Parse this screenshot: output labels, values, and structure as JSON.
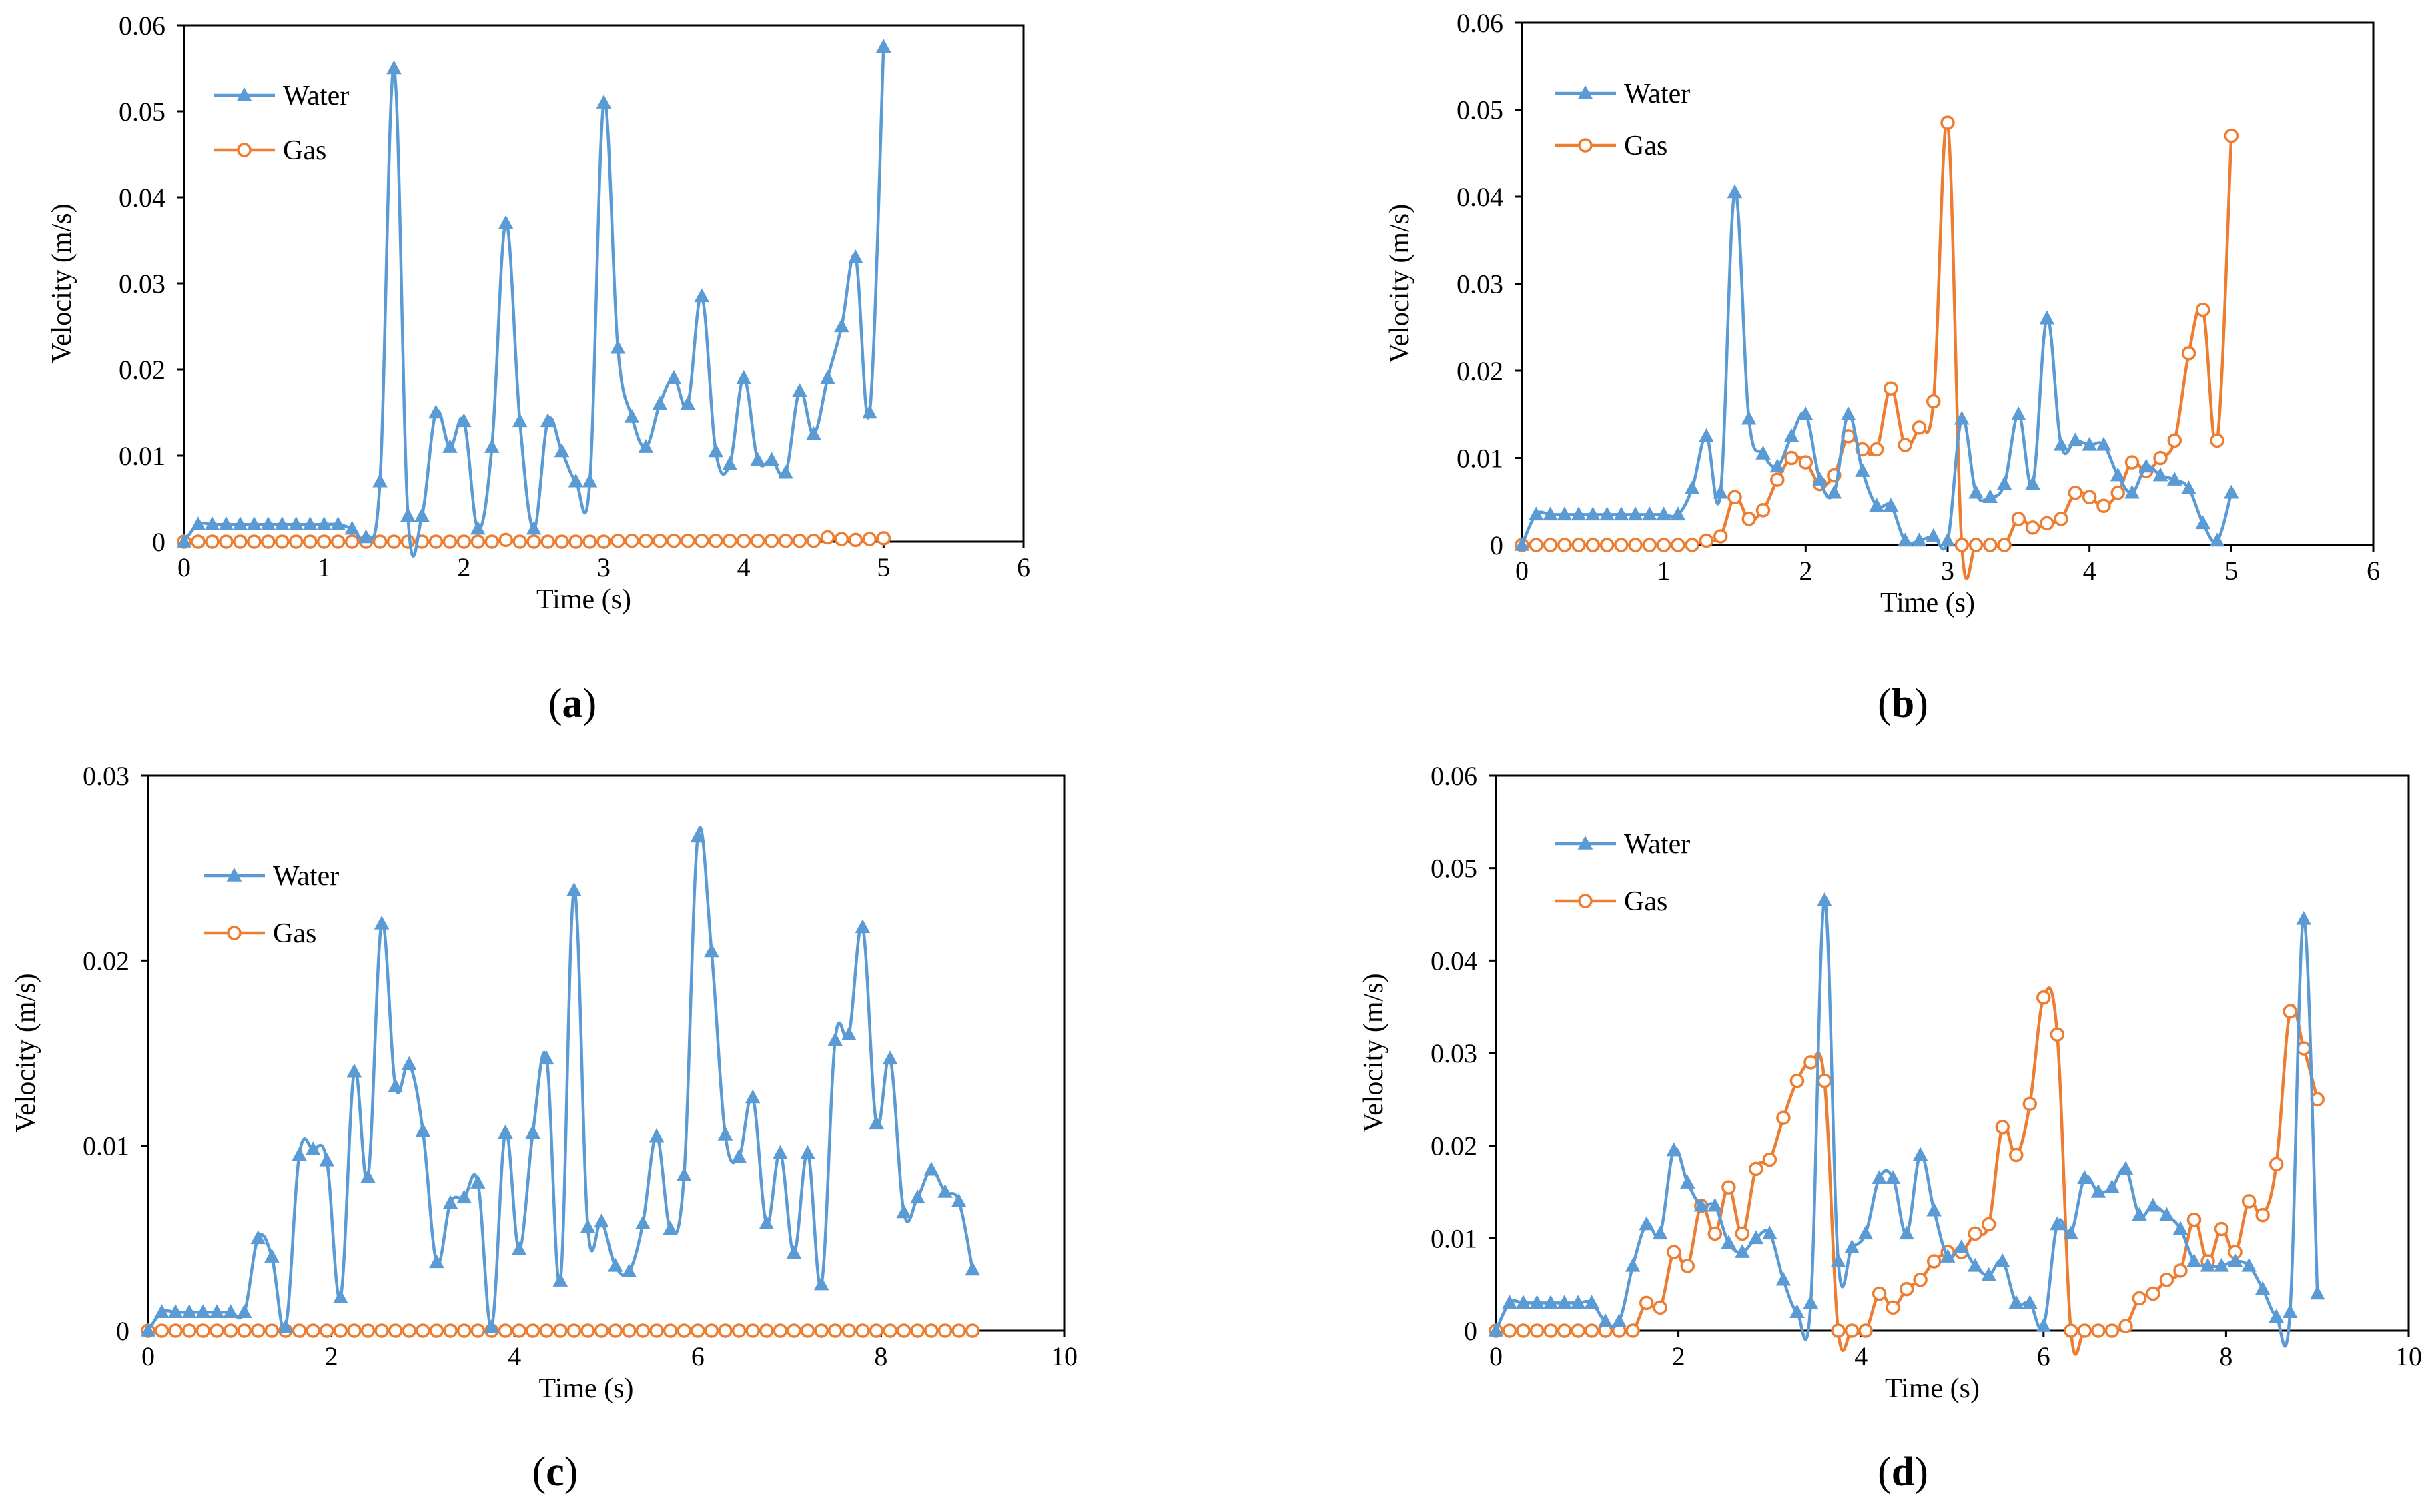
{
  "colors": {
    "water": "#5B9BD5",
    "gas": "#ED7D31"
  },
  "chart_data": [
    {
      "panel": "a",
      "type": "line",
      "xlabel": "Time (s)",
      "ylabel": "Velocity (m/s)",
      "xlim": [
        0,
        6
      ],
      "ylim": [
        0,
        0.06
      ],
      "xticks": [
        "0",
        "1",
        "2",
        "3",
        "4",
        "5",
        "6"
      ],
      "yticks": [
        "0",
        "0.01",
        "0.02",
        "0.03",
        "0.04",
        "0.05",
        "0.06"
      ],
      "legend": [
        "Water",
        "Gas"
      ],
      "series": [
        {
          "name": "Water",
          "marker": "triangle",
          "x": [
            0,
            0.1,
            0.2,
            0.3,
            0.4,
            0.5,
            0.6,
            0.7,
            0.8,
            0.9,
            1.0,
            1.1,
            1.2,
            1.3,
            1.4,
            1.5,
            1.6,
            1.7,
            1.8,
            1.9,
            2.0,
            2.1,
            2.2,
            2.3,
            2.4,
            2.5,
            2.6,
            2.7,
            2.8,
            2.9,
            3.0,
            3.1,
            3.2,
            3.3,
            3.4,
            3.5,
            3.6,
            3.7,
            3.8,
            3.9,
            4.0,
            4.1,
            4.2,
            4.3,
            4.4,
            4.5,
            4.6,
            4.7,
            4.8,
            4.9,
            5.0
          ],
          "values": [
            0,
            0.002,
            0.002,
            0.002,
            0.002,
            0.002,
            0.002,
            0.002,
            0.002,
            0.002,
            0.002,
            0.002,
            0.0015,
            0.0005,
            0.007,
            0.055,
            0.003,
            0.003,
            0.015,
            0.011,
            0.014,
            0.0015,
            0.011,
            0.037,
            0.014,
            0.0015,
            0.014,
            0.0105,
            0.007,
            0.007,
            0.051,
            0.0225,
            0.0145,
            0.011,
            0.016,
            0.019,
            0.016,
            0.0285,
            0.0105,
            0.009,
            0.019,
            0.0095,
            0.0095,
            0.008,
            0.0175,
            0.0125,
            0.019,
            0.025,
            0.033,
            0.015,
            0.0575
          ]
        },
        {
          "name": "Gas",
          "marker": "circle",
          "x": [
            0,
            0.1,
            0.2,
            0.3,
            0.4,
            0.5,
            0.6,
            0.7,
            0.8,
            0.9,
            1.0,
            1.1,
            1.2,
            1.3,
            1.4,
            1.5,
            1.6,
            1.7,
            1.8,
            1.9,
            2.0,
            2.1,
            2.2,
            2.3,
            2.4,
            2.5,
            2.6,
            2.7,
            2.8,
            2.9,
            3.0,
            3.1,
            3.2,
            3.3,
            3.4,
            3.5,
            3.6,
            3.7,
            3.8,
            3.9,
            4.0,
            4.1,
            4.2,
            4.3,
            4.4,
            4.5,
            4.6,
            4.7,
            4.8,
            4.9,
            5.0
          ],
          "values": [
            0,
            0,
            0,
            0,
            0,
            0,
            0,
            0,
            0,
            0,
            0,
            0,
            0,
            0,
            0,
            0,
            0,
            0,
            0,
            0,
            0,
            0,
            0,
            0.0002,
            0,
            0,
            0,
            0,
            0,
            0,
            0,
            0.0001,
            0.0001,
            0.0001,
            0.0001,
            0.0001,
            0.0001,
            0.0001,
            0.0001,
            0.0001,
            0.0001,
            0.0001,
            0.0001,
            0.0001,
            0.0001,
            0.0001,
            0.0005,
            0.0003,
            0.0002,
            0.0003,
            0.0004
          ]
        }
      ]
    },
    {
      "panel": "b",
      "type": "line",
      "xlabel": "Time (s)",
      "ylabel": "Velocity (m/s)",
      "xlim": [
        0,
        6
      ],
      "ylim": [
        0,
        0.06
      ],
      "xticks": [
        "0",
        "1",
        "2",
        "3",
        "4",
        "5",
        "6"
      ],
      "yticks": [
        "0",
        "0.01",
        "0.02",
        "0.03",
        "0.04",
        "0.05",
        "0.06"
      ],
      "legend": [
        "Water",
        "Gas"
      ],
      "series": [
        {
          "name": "Water",
          "marker": "triangle",
          "x": [
            0,
            0.1,
            0.2,
            0.3,
            0.4,
            0.5,
            0.6,
            0.7,
            0.8,
            0.9,
            1.0,
            1.1,
            1.2,
            1.3,
            1.4,
            1.5,
            1.6,
            1.7,
            1.8,
            1.9,
            2.0,
            2.1,
            2.2,
            2.3,
            2.4,
            2.5,
            2.6,
            2.7,
            2.8,
            2.9,
            3.0,
            3.1,
            3.2,
            3.3,
            3.4,
            3.5,
            3.6,
            3.7,
            3.8,
            3.9,
            4.0,
            4.1,
            4.2,
            4.3,
            4.4,
            4.5,
            4.6,
            4.7,
            4.8,
            4.9,
            5.0
          ],
          "values": [
            0,
            0.0035,
            0.0035,
            0.0035,
            0.0035,
            0.0035,
            0.0035,
            0.0035,
            0.0035,
            0.0035,
            0.0035,
            0.0035,
            0.0065,
            0.0125,
            0.006,
            0.0405,
            0.0145,
            0.0105,
            0.009,
            0.0125,
            0.015,
            0.0075,
            0.006,
            0.015,
            0.0085,
            0.0045,
            0.0045,
            0.0005,
            0.0005,
            0.001,
            0.0005,
            0.0145,
            0.006,
            0.0055,
            0.007,
            0.015,
            0.007,
            0.026,
            0.0115,
            0.012,
            0.0115,
            0.0115,
            0.008,
            0.006,
            0.009,
            0.008,
            0.0075,
            0.0065,
            0.0025,
            0.0005,
            0.006
          ]
        },
        {
          "name": "Gas",
          "marker": "circle",
          "x": [
            0,
            0.1,
            0.2,
            0.3,
            0.4,
            0.5,
            0.6,
            0.7,
            0.8,
            0.9,
            1.0,
            1.1,
            1.2,
            1.3,
            1.4,
            1.5,
            1.6,
            1.7,
            1.8,
            1.9,
            2.0,
            2.1,
            2.2,
            2.3,
            2.4,
            2.5,
            2.6,
            2.7,
            2.8,
            2.9,
            3.0,
            3.1,
            3.2,
            3.3,
            3.4,
            3.5,
            3.6,
            3.7,
            3.8,
            3.9,
            4.0,
            4.1,
            4.2,
            4.3,
            4.4,
            4.5,
            4.6,
            4.7,
            4.8,
            4.9,
            5.0
          ],
          "values": [
            0,
            0,
            0,
            0,
            0,
            0,
            0,
            0,
            0,
            0,
            0,
            0,
            0,
            0.0005,
            0.001,
            0.0055,
            0.003,
            0.004,
            0.0075,
            0.01,
            0.0095,
            0.007,
            0.008,
            0.0125,
            0.011,
            0.011,
            0.018,
            0.0115,
            0.0135,
            0.0165,
            0.0485,
            0,
            0,
            0,
            0,
            0.003,
            0.002,
            0.0025,
            0.003,
            0.006,
            0.0055,
            0.0045,
            0.006,
            0.0095,
            0.0085,
            0.01,
            0.012,
            0.022,
            0.027,
            0.012,
            0.047
          ]
        }
      ]
    },
    {
      "panel": "c",
      "type": "line",
      "xlabel": "Time (s)",
      "ylabel": "Velocity (m/s)",
      "xlim": [
        0,
        10
      ],
      "ylim": [
        0,
        0.03
      ],
      "xticks": [
        "0",
        "2",
        "4",
        "6",
        "8",
        "10"
      ],
      "yticks": [
        "0",
        "0.01",
        "0.02",
        "0.03"
      ],
      "legend": [
        "Water",
        "Gas"
      ],
      "series": [
        {
          "name": "Water",
          "marker": "triangle",
          "x": [
            0,
            0.15,
            0.3,
            0.45,
            0.6,
            0.75,
            0.9,
            1.05,
            1.2,
            1.35,
            1.5,
            1.65,
            1.8,
            1.95,
            2.1,
            2.25,
            2.4,
            2.55,
            2.7,
            2.85,
            3.0,
            3.15,
            3.3,
            3.45,
            3.6,
            3.75,
            3.9,
            4.05,
            4.2,
            4.35,
            4.5,
            4.65,
            4.8,
            4.95,
            5.1,
            5.25,
            5.4,
            5.55,
            5.7,
            5.85,
            6.0,
            6.15,
            6.3,
            6.45,
            6.6,
            6.75,
            6.9,
            7.05,
            7.2,
            7.35,
            7.5,
            7.65,
            7.8,
            7.95,
            8.1,
            8.25,
            8.4,
            8.55,
            8.7,
            8.85,
            9.0
          ],
          "values": [
            0,
            0.001,
            0.001,
            0.001,
            0.001,
            0.001,
            0.001,
            0.001,
            0.005,
            0.004,
            0.0002,
            0.0095,
            0.0098,
            0.0092,
            0.0018,
            0.014,
            0.0083,
            0.022,
            0.0132,
            0.0144,
            0.0108,
            0.0037,
            0.0069,
            0.0072,
            0.008,
            0.0002,
            0.0107,
            0.0044,
            0.0107,
            0.0147,
            0.0027,
            0.0238,
            0.0056,
            0.0059,
            0.0035,
            0.0032,
            0.0058,
            0.0105,
            0.0055,
            0.0084,
            0.0267,
            0.0205,
            0.0106,
            0.0094,
            0.0126,
            0.0058,
            0.0096,
            0.0042,
            0.0096,
            0.0025,
            0.0157,
            0.016,
            0.0218,
            0.0112,
            0.0147,
            0.0064,
            0.0072,
            0.0087,
            0.0075,
            0.007,
            0.0033
          ]
        },
        {
          "name": "Gas",
          "marker": "circle",
          "x": [
            0,
            0.15,
            0.3,
            0.45,
            0.6,
            0.75,
            0.9,
            1.05,
            1.2,
            1.35,
            1.5,
            1.65,
            1.8,
            1.95,
            2.1,
            2.25,
            2.4,
            2.55,
            2.7,
            2.85,
            3.0,
            3.15,
            3.3,
            3.45,
            3.6,
            3.75,
            3.9,
            4.05,
            4.2,
            4.35,
            4.5,
            4.65,
            4.8,
            4.95,
            5.1,
            5.25,
            5.4,
            5.55,
            5.7,
            5.85,
            6.0,
            6.15,
            6.3,
            6.45,
            6.6,
            6.75,
            6.9,
            7.05,
            7.2,
            7.35,
            7.5,
            7.65,
            7.8,
            7.95,
            8.1,
            8.25,
            8.4,
            8.55,
            8.7,
            8.85,
            9.0
          ],
          "values": [
            0,
            0,
            0,
            0,
            0,
            0,
            0,
            0,
            0,
            0,
            0,
            0,
            0,
            0,
            0,
            0,
            0,
            0,
            0,
            0,
            0,
            0,
            0,
            0,
            0,
            0,
            0,
            0,
            0,
            0,
            0,
            0,
            0,
            0,
            0,
            0,
            0,
            0,
            0,
            0,
            0,
            0,
            0,
            0,
            0,
            0,
            0,
            0,
            0,
            0,
            0,
            0,
            0,
            0,
            0,
            0,
            0,
            0,
            0,
            0,
            0
          ]
        }
      ]
    },
    {
      "panel": "d",
      "type": "line",
      "xlabel": "Time (s)",
      "ylabel": "Velocity (m/s)",
      "xlim": [
        0,
        10
      ],
      "ylim": [
        0,
        0.06
      ],
      "xticks": [
        "0",
        "2",
        "4",
        "6",
        "8",
        "10"
      ],
      "yticks": [
        "0",
        "0.01",
        "0.02",
        "0.03",
        "0.04",
        "0.05",
        "0.06"
      ],
      "legend": [
        "Water",
        "Gas"
      ],
      "series": [
        {
          "name": "Water",
          "marker": "triangle",
          "x": [
            0,
            0.15,
            0.3,
            0.45,
            0.6,
            0.75,
            0.9,
            1.05,
            1.2,
            1.35,
            1.5,
            1.65,
            1.8,
            1.95,
            2.1,
            2.25,
            2.4,
            2.55,
            2.7,
            2.85,
            3.0,
            3.15,
            3.3,
            3.45,
            3.6,
            3.75,
            3.9,
            4.05,
            4.2,
            4.35,
            4.5,
            4.65,
            4.8,
            4.95,
            5.1,
            5.25,
            5.4,
            5.55,
            5.7,
            5.85,
            6.0,
            6.15,
            6.3,
            6.45,
            6.6,
            6.75,
            6.9,
            7.05,
            7.2,
            7.35,
            7.5,
            7.65,
            7.8,
            7.95,
            8.1,
            8.25,
            8.4,
            8.55,
            8.7,
            8.85,
            9.0
          ],
          "values": [
            0,
            0.003,
            0.003,
            0.003,
            0.003,
            0.003,
            0.003,
            0.003,
            0.001,
            0.001,
            0.007,
            0.0115,
            0.0105,
            0.0195,
            0.016,
            0.0135,
            0.0135,
            0.0095,
            0.0085,
            0.01,
            0.0105,
            0.0055,
            0.002,
            0.003,
            0.0465,
            0.0075,
            0.009,
            0.0105,
            0.0165,
            0.0165,
            0.0105,
            0.019,
            0.013,
            0.008,
            0.009,
            0.007,
            0.006,
            0.0075,
            0.003,
            0.003,
            0.0005,
            0.0115,
            0.0105,
            0.0165,
            0.015,
            0.0155,
            0.0175,
            0.0125,
            0.0135,
            0.0125,
            0.011,
            0.0075,
            0.007,
            0.007,
            0.0075,
            0.007,
            0.0045,
            0.0015,
            0.002,
            0.0445,
            0.004
          ]
        },
        {
          "name": "Gas",
          "marker": "circle",
          "x": [
            0,
            0.15,
            0.3,
            0.45,
            0.6,
            0.75,
            0.9,
            1.05,
            1.2,
            1.35,
            1.5,
            1.65,
            1.8,
            1.95,
            2.1,
            2.25,
            2.4,
            2.55,
            2.7,
            2.85,
            3.0,
            3.15,
            3.3,
            3.45,
            3.6,
            3.75,
            3.9,
            4.05,
            4.2,
            4.35,
            4.5,
            4.65,
            4.8,
            4.95,
            5.1,
            5.25,
            5.4,
            5.55,
            5.7,
            5.85,
            6.0,
            6.15,
            6.3,
            6.45,
            6.6,
            6.75,
            6.9,
            7.05,
            7.2,
            7.35,
            7.5,
            7.65,
            7.8,
            7.95,
            8.1,
            8.25,
            8.4,
            8.55,
            8.7,
            8.85,
            9.0
          ],
          "values": [
            0,
            0,
            0,
            0,
            0,
            0,
            0,
            0,
            0,
            0,
            0,
            0.003,
            0.0025,
            0.0085,
            0.007,
            0.0135,
            0.0105,
            0.0155,
            0.0105,
            0.0175,
            0.0185,
            0.023,
            0.027,
            0.029,
            0.027,
            0,
            0,
            0,
            0.004,
            0.0025,
            0.0045,
            0.0055,
            0.0075,
            0.0085,
            0.0085,
            0.0105,
            0.0115,
            0.022,
            0.019,
            0.0245,
            0.036,
            0.032,
            0,
            0,
            0,
            0,
            0.0005,
            0.0035,
            0.004,
            0.0055,
            0.0065,
            0.012,
            0.0075,
            0.011,
            0.0085,
            0.014,
            0.0125,
            0.018,
            0.0345,
            0.0305,
            0.025
          ]
        }
      ]
    }
  ],
  "panel_labels": [
    "a",
    "b",
    "c",
    "d"
  ]
}
